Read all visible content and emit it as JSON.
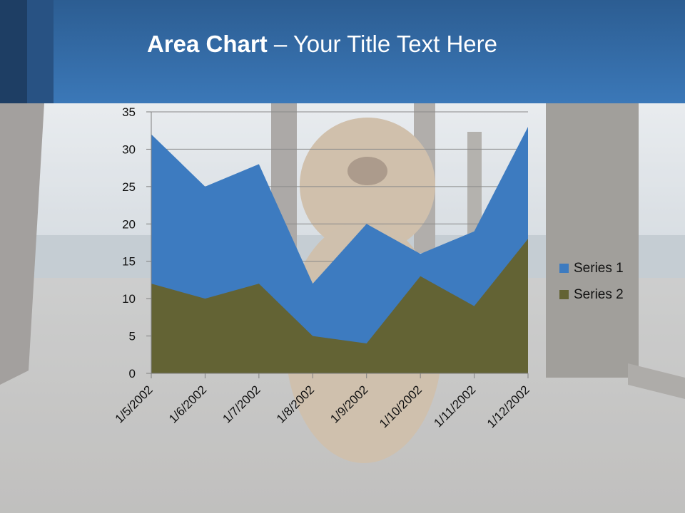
{
  "slide": {
    "title_bold": "Area Chart",
    "title_rest": " – Your Title Text Here"
  },
  "colors": {
    "header": "#3b78b8",
    "series1": "#3d7bc0",
    "series2": "#636334"
  },
  "chart_data": {
    "type": "area",
    "title": "",
    "xlabel": "",
    "ylabel": "",
    "categories": [
      "1/5/2002",
      "1/6/2002",
      "1/7/2002",
      "1/8/2002",
      "1/9/2002",
      "1/10/2002",
      "1/11/2002",
      "1/12/2002"
    ],
    "series": [
      {
        "name": "Series 1",
        "values": [
          32,
          25,
          28,
          12,
          20,
          16,
          19,
          33
        ]
      },
      {
        "name": "Series 2",
        "values": [
          12,
          10,
          12,
          5,
          4,
          13,
          9,
          18
        ]
      }
    ],
    "ylim": [
      0,
      35
    ],
    "yticks": [
      0,
      5,
      10,
      15,
      20,
      25,
      30,
      35
    ],
    "grid": true,
    "legend": "right"
  }
}
